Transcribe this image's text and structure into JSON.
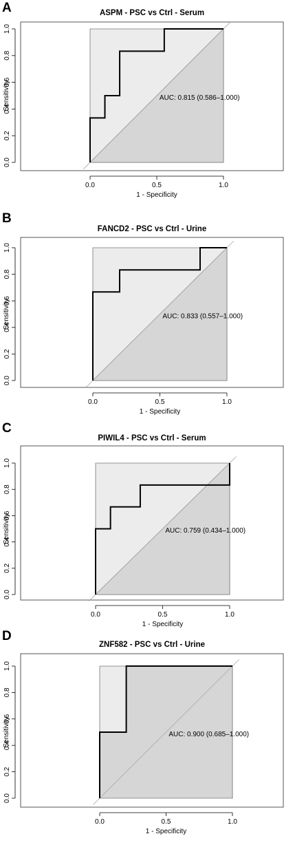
{
  "chart_data": [
    {
      "type": "line",
      "panel": "A",
      "title": "ASPM - PSC vs Ctrl - Serum",
      "xlabel": "1 - Specificity",
      "ylabel": "Sensitivity",
      "xlim": [
        0,
        1
      ],
      "ylim": [
        0,
        1
      ],
      "x_ticks": [
        "0.0",
        "0.5",
        "1.0"
      ],
      "y_ticks": [
        "0.0",
        "0.2",
        "0.4",
        "0.6",
        "0.8",
        "1.0"
      ],
      "auc_label": "AUC: 0.815 (0.586–1.000)",
      "roc_x": [
        0,
        0,
        0.111,
        0.111,
        0.222,
        0.222,
        0.556,
        0.556,
        1
      ],
      "roc_y": [
        0,
        0.333,
        0.333,
        0.5,
        0.5,
        0.833,
        0.833,
        1,
        1
      ],
      "ci_lower_x": [
        0,
        1,
        1
      ],
      "ci_lower_y": [
        0,
        0,
        1
      ],
      "ci_upper_x": [
        0,
        0,
        1
      ],
      "ci_upper_y": [
        0,
        1,
        1
      ]
    },
    {
      "type": "line",
      "panel": "B",
      "title": "FANCD2 - PSC vs Ctrl - Urine",
      "xlabel": "1 - Specificity",
      "ylabel": "Sensitivity",
      "xlim": [
        0,
        1
      ],
      "ylim": [
        0,
        1
      ],
      "x_ticks": [
        "0.0",
        "0.5",
        "1.0"
      ],
      "y_ticks": [
        "0.0",
        "0.2",
        "0.4",
        "0.6",
        "0.8",
        "1.0"
      ],
      "auc_label": "AUC: 0.833 (0.557–1.000)",
      "roc_x": [
        0,
        0,
        0.2,
        0.2,
        0.8,
        0.8,
        1
      ],
      "roc_y": [
        0,
        0.667,
        0.667,
        0.833,
        0.833,
        1,
        1
      ],
      "ci_lower_x": [
        0,
        1,
        1
      ],
      "ci_lower_y": [
        0,
        0,
        1
      ],
      "ci_upper_x": [
        0,
        0,
        1
      ],
      "ci_upper_y": [
        0,
        1,
        1
      ]
    },
    {
      "type": "line",
      "panel": "C",
      "title": "PIWIL4 - PSC vs Ctrl - Serum",
      "xlabel": "1 - Specificity",
      "ylabel": "Sensitivity",
      "xlim": [
        0,
        1
      ],
      "ylim": [
        0,
        1
      ],
      "x_ticks": [
        "0.0",
        "0.5",
        "1.0"
      ],
      "y_ticks": [
        "0.0",
        "0.2",
        "0.4",
        "0.6",
        "0.8",
        "1.0"
      ],
      "auc_label": "AUC: 0.759 (0.434–1.000)",
      "roc_x": [
        0,
        0,
        0.111,
        0.111,
        0.333,
        0.333,
        1,
        1
      ],
      "roc_y": [
        0,
        0.5,
        0.5,
        0.667,
        0.667,
        0.833,
        0.833,
        1
      ],
      "ci_lower_x": [
        0,
        1,
        1
      ],
      "ci_lower_y": [
        0,
        0,
        1
      ],
      "ci_upper_x": [
        0,
        0,
        1
      ],
      "ci_upper_y": [
        0,
        1,
        1
      ]
    },
    {
      "type": "line",
      "panel": "D",
      "title": "ZNF582 - PSC vs Ctrl - Urine",
      "xlabel": "1 - Specificity",
      "ylabel": "Sensitivity",
      "xlim": [
        0,
        1
      ],
      "ylim": [
        0,
        1
      ],
      "x_ticks": [
        "0.0",
        "0.5",
        "1.0"
      ],
      "y_ticks": [
        "0.0",
        "0.2",
        "0.4",
        "0.6",
        "0.8",
        "1.0"
      ],
      "auc_label": "AUC: 0.900 (0.685–1.000)",
      "roc_x": [
        0,
        0,
        0.2,
        0.2,
        1
      ],
      "roc_y": [
        0,
        0.5,
        0.5,
        1,
        1
      ],
      "ci_lower_x": [
        0,
        0,
        0.2,
        0.2,
        1,
        1
      ],
      "ci_lower_y": [
        0,
        0.5,
        0.5,
        1,
        1,
        0
      ],
      "ci_upper_x": [
        0,
        0,
        0.2,
        0.2
      ],
      "ci_upper_y": [
        0,
        1,
        1,
        0.5
      ]
    }
  ],
  "colors": {
    "ci_band": "#ececec",
    "ci_inner": "#d6d6d6",
    "roc_line": "#000000",
    "diagonal": "#a8a8a8",
    "box": "#555555"
  }
}
